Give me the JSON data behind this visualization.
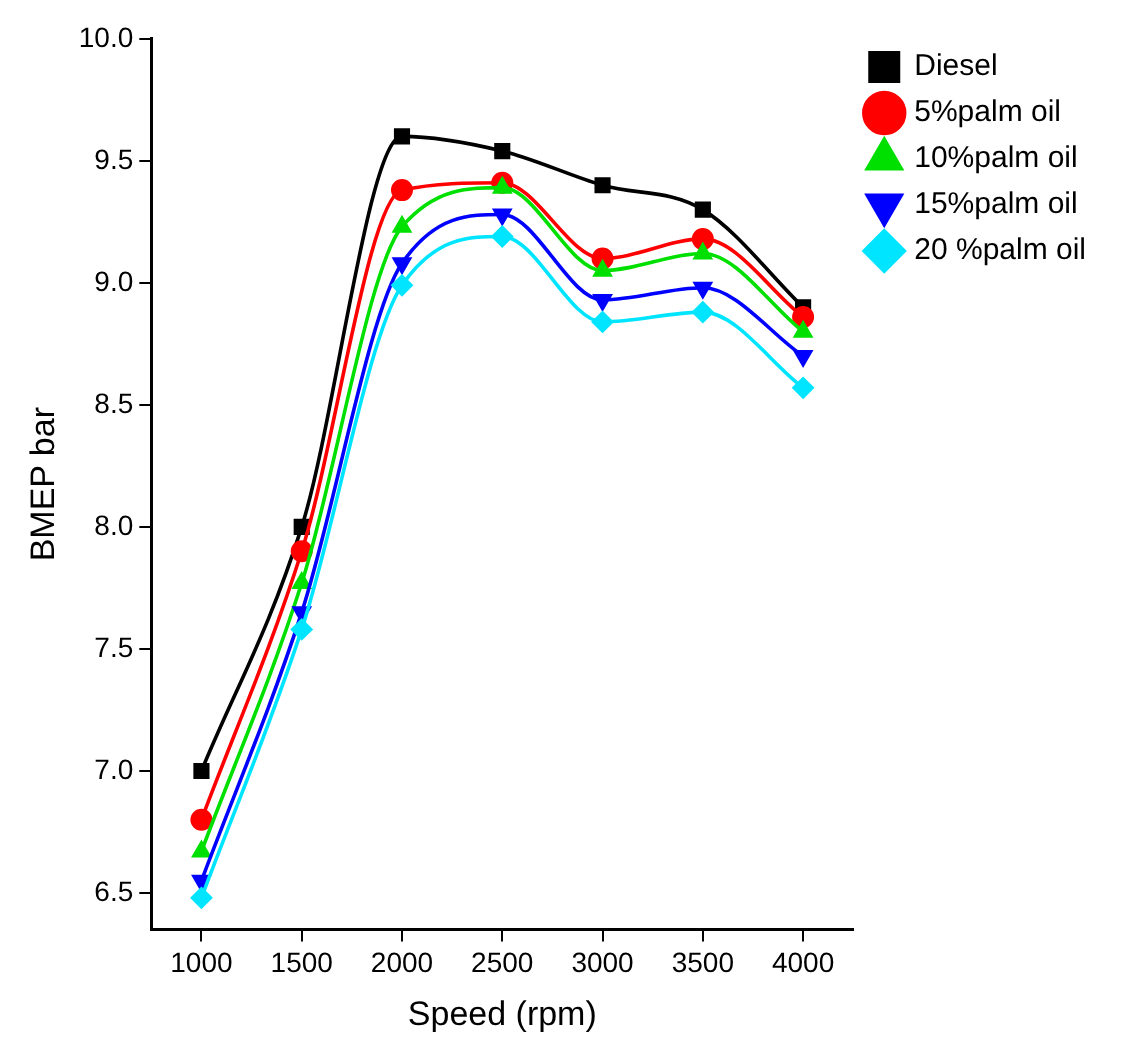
{
  "chart_data": {
    "type": "line",
    "xlabel": "Speed (rpm)",
    "ylabel": "BMEP bar",
    "x": [
      1000,
      1500,
      2000,
      2500,
      3000,
      3500,
      4000
    ],
    "xlim": [
      750,
      4250
    ],
    "xticks": [
      1000,
      1500,
      2000,
      2500,
      3000,
      3500,
      4000
    ],
    "ylim": [
      6.35,
      10.0
    ],
    "yticks": [
      {
        "value": 6.5,
        "label": "6.5"
      },
      {
        "value": 7.0,
        "label": "7.0"
      },
      {
        "value": 7.5,
        "label": "7.5"
      },
      {
        "value": 8.0,
        "label": "8.0"
      },
      {
        "value": 8.5,
        "label": "8.5"
      },
      {
        "value": 9.0,
        "label": "9.0"
      },
      {
        "value": 9.5,
        "label": "9.5"
      },
      {
        "value": 10.0,
        "label": "10.0"
      }
    ],
    "grid": false,
    "legend": "top right",
    "line_style": "solid",
    "series": [
      {
        "name": "Diesel",
        "color": "#000000",
        "marker": "square",
        "values": [
          7.0,
          8.0,
          9.6,
          9.54,
          9.4,
          9.3,
          8.9
        ]
      },
      {
        "name": "5%palm oil",
        "color": "#ff0000",
        "marker": "circle",
        "values": [
          6.8,
          7.9,
          9.38,
          9.41,
          9.1,
          9.18,
          8.86
        ]
      },
      {
        "name": "10%palm oil",
        "color": "#00e000",
        "marker": "triangle",
        "values": [
          6.67,
          7.77,
          9.23,
          9.39,
          9.05,
          9.12,
          8.8
        ]
      },
      {
        "name": "15%palm oil",
        "color": "#0000ff",
        "marker": "triangle-down",
        "values": [
          6.55,
          7.65,
          9.08,
          9.28,
          8.93,
          8.98,
          8.7
        ]
      },
      {
        "name": "20 %palm oil",
        "color": "#00e5ff",
        "marker": "diamond",
        "values": [
          6.48,
          7.58,
          8.99,
          9.19,
          8.84,
          8.88,
          8.57
        ]
      }
    ]
  }
}
